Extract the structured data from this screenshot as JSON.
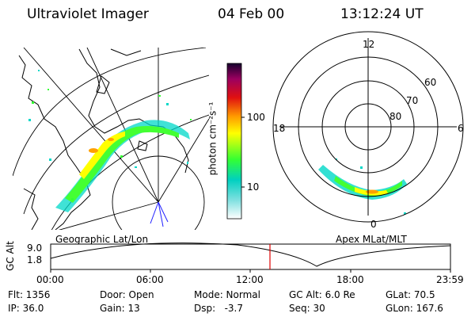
{
  "header": {
    "instrument": "Ultraviolet Imager",
    "date": "04 Feb 00",
    "time": "13:12:24 UT"
  },
  "colorbar": {
    "unit_label": "photon cm⁻²s⁻¹",
    "ticks": [
      "100",
      "10"
    ]
  },
  "left_panel": {
    "caption": "Geographic Lat/Lon"
  },
  "right_panel": {
    "caption": "Apex MLat/MLT",
    "mlt_labels": {
      "top": "12",
      "left": "18",
      "right": "6",
      "bottom": "0"
    },
    "lat_labels": [
      "60",
      "70",
      "80"
    ]
  },
  "timeline": {
    "ylabel": "GC Alt",
    "y_ticks": [
      "9.0",
      "1.8"
    ],
    "x_ticks": [
      "00:00",
      "06:00",
      "12:00",
      "18:00",
      "23:59"
    ],
    "marker_color": "#e00000"
  },
  "status": {
    "row1": {
      "flt": "Flt: 1356",
      "door": "Door: Open",
      "mode": "Mode: Normal",
      "gc_alt": "GC Alt: 6.0 Re",
      "glat": "GLat: 70.5"
    },
    "row2": {
      "ip": "IP: 36.0",
      "gain": "Gain: 13",
      "dsp": "Dsp:   -3.7",
      "seq": "Seq: 30",
      "glon": "GLon: 167.6"
    }
  },
  "colors": {
    "colorbar_stops": [
      "#ffffff",
      "#00e5e5",
      "#33ff00",
      "#ffff00",
      "#ff8c00",
      "#e00000",
      "#a0005a",
      "#1a0033"
    ]
  }
}
